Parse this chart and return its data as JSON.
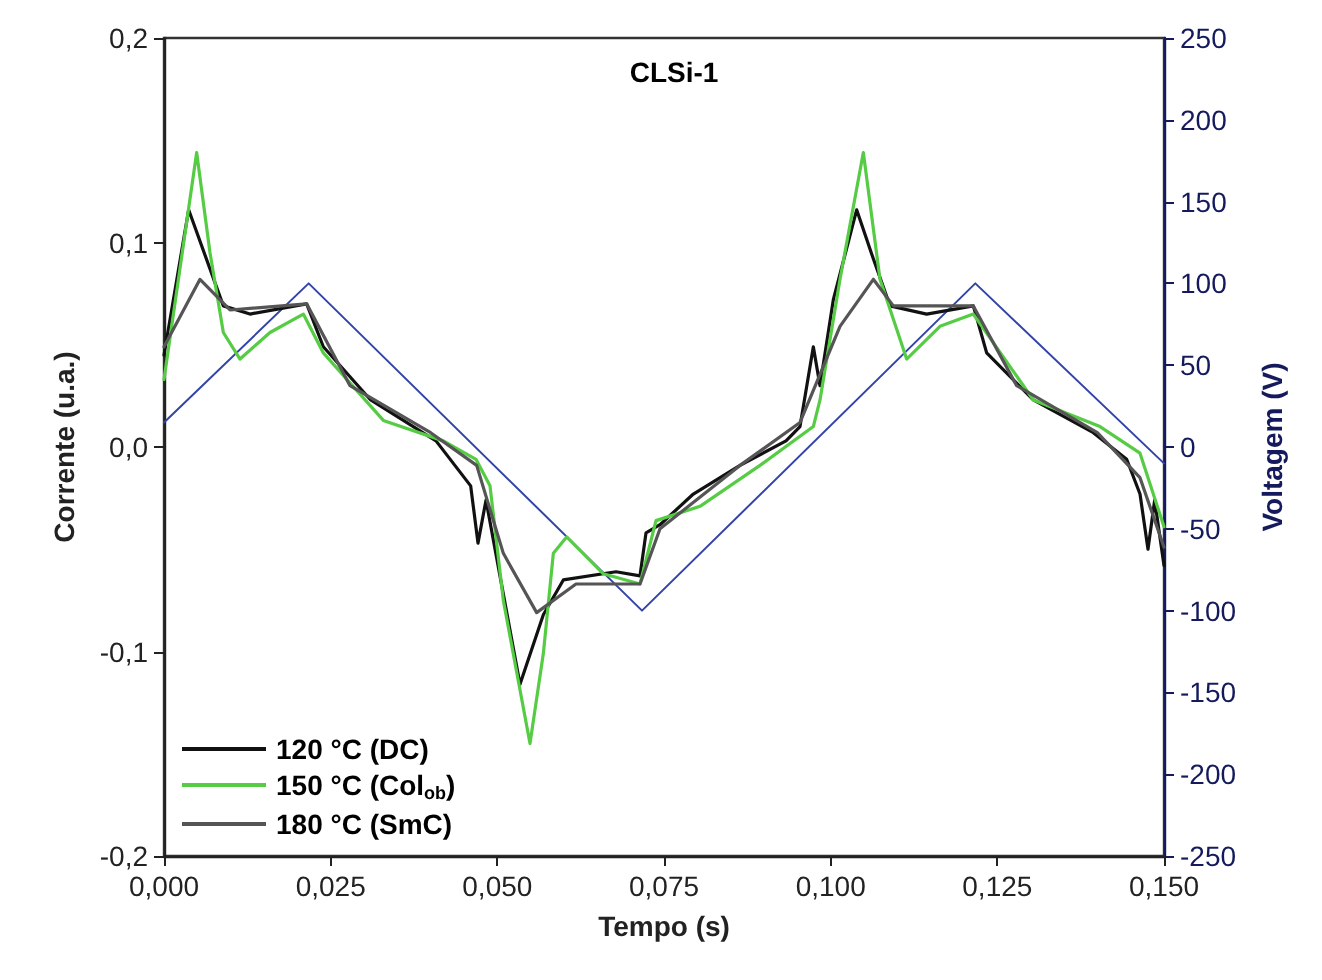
{
  "chart_data": {
    "type": "line",
    "title": "CLSi-1",
    "xlabel": "Tempo (s)",
    "ylabel": "Corrente (u.a.)",
    "y2label": "Voltagem (V)",
    "xlim": [
      0,
      0.15
    ],
    "xticks": [
      {
        "value": 0,
        "label": "0,000"
      },
      {
        "value": 0.025,
        "label": "0,025"
      },
      {
        "value": 0.05,
        "label": "0,050"
      },
      {
        "value": 0.075,
        "label": "0,075"
      },
      {
        "value": 0.1,
        "label": "0,100"
      },
      {
        "value": 0.125,
        "label": "0,125"
      },
      {
        "value": 0.15,
        "label": "0,150"
      }
    ],
    "ylim": [
      -0.2,
      0.2
    ],
    "yticks": [
      {
        "value": -0.2,
        "label": "-0,2"
      },
      {
        "value": -0.1,
        "label": "-0,1"
      },
      {
        "value": 0,
        "label": "0,0"
      },
      {
        "value": 0.1,
        "label": "0,1"
      },
      {
        "value": 0.2,
        "label": "0,2"
      }
    ],
    "y2lim": [
      -250,
      250
    ],
    "y2ticks": [
      -250,
      -200,
      -150,
      -100,
      -50,
      0,
      50,
      100,
      150,
      200,
      250
    ],
    "grid": false,
    "legend": "bottom left",
    "marker": "none",
    "line_style": "solid",
    "series": [
      {
        "name": "120 °C (DC)",
        "color": "#111111",
        "x": [
          0,
          0.0037,
          0.0089,
          0.0129,
          0.0214,
          0.0239,
          0.031,
          0.0408,
          0.046,
          0.0471,
          0.0483,
          0.0534,
          0.0569,
          0.0599,
          0.0678,
          0.0714,
          0.0723,
          0.0744,
          0.0794,
          0.0864,
          0.0933,
          0.0954,
          0.0974,
          0.0984,
          0.1004,
          0.1039,
          0.1064,
          0.1089,
          0.1144,
          0.1214,
          0.1234,
          0.1304,
          0.1394,
          0.1444,
          0.1464,
          0.1476,
          0.1486,
          0.15
        ],
        "values": [
          0.045,
          0.116,
          0.069,
          0.065,
          0.07,
          0.049,
          0.023,
          0.003,
          -0.019,
          -0.047,
          -0.026,
          -0.116,
          -0.082,
          -0.065,
          -0.061,
          -0.063,
          -0.042,
          -0.038,
          -0.023,
          -0.009,
          0.003,
          0.01,
          0.049,
          0.03,
          0.072,
          0.116,
          0.092,
          0.069,
          0.065,
          0.069,
          0.046,
          0.023,
          0.007,
          -0.006,
          -0.023,
          -0.05,
          -0.026,
          -0.058
        ]
      },
      {
        "name": "150 °C (Col$_{ob}$)",
        "color": "#55cc44",
        "x": [
          0,
          0.0049,
          0.0069,
          0.0089,
          0.0114,
          0.0159,
          0.0209,
          0.0239,
          0.0329,
          0.0419,
          0.0468,
          0.0489,
          0.0509,
          0.0549,
          0.0569,
          0.0584,
          0.0604,
          0.0659,
          0.0714,
          0.0738,
          0.0804,
          0.0894,
          0.0974,
          0.0984,
          0.1014,
          0.1049,
          0.1074,
          0.1114,
          0.1164,
          0.1214,
          0.1304,
          0.1404,
          0.1464,
          0.15
        ],
        "values": [
          0.033,
          0.144,
          0.095,
          0.056,
          0.043,
          0.056,
          0.065,
          0.046,
          0.013,
          0.003,
          -0.006,
          -0.019,
          -0.075,
          -0.145,
          -0.101,
          -0.052,
          -0.044,
          -0.062,
          -0.067,
          -0.036,
          -0.029,
          -0.009,
          0.01,
          0.023,
          0.082,
          0.144,
          0.082,
          0.043,
          0.059,
          0.065,
          0.023,
          0.01,
          -0.003,
          -0.039
        ]
      },
      {
        "name": "180 °C (SmC)",
        "color": "#555555",
        "x": [
          0,
          0.0054,
          0.0099,
          0.0214,
          0.0279,
          0.04,
          0.0469,
          0.0509,
          0.0559,
          0.0618,
          0.0714,
          0.0744,
          0.0864,
          0.0954,
          0.1014,
          0.1064,
          0.1094,
          0.1214,
          0.1279,
          0.14,
          0.1464,
          0.15
        ],
        "values": [
          0.049,
          0.082,
          0.067,
          0.07,
          0.03,
          0.007,
          -0.009,
          -0.052,
          -0.081,
          -0.067,
          -0.067,
          -0.04,
          -0.009,
          0.012,
          0.059,
          0.082,
          0.069,
          0.069,
          0.03,
          0.007,
          -0.015,
          -0.049
        ]
      },
      {
        "color": "#3344a8",
        "axis": "y2",
        "x": [
          0,
          0.0217,
          0.0717,
          0.1217,
          0.15
        ],
        "values": [
          15,
          100,
          -100,
          100,
          -10
        ]
      }
    ]
  }
}
